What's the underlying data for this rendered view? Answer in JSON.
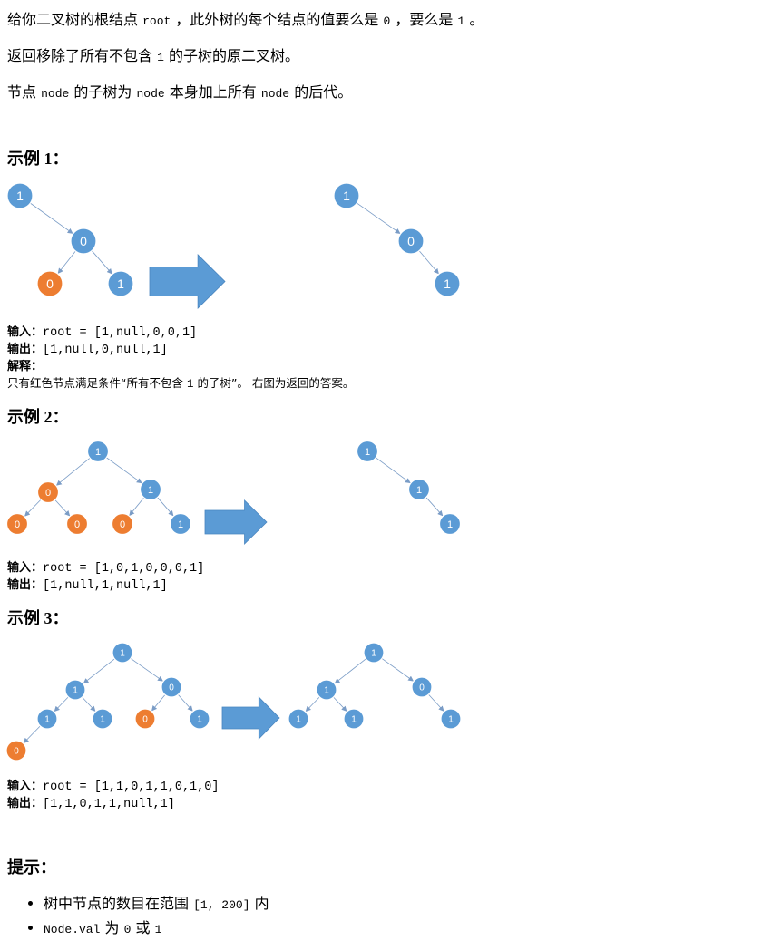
{
  "intro": {
    "line1": [
      "给你二叉树的根结点 ",
      "root",
      " ，此外树的每个结点的值要么是 ",
      "0",
      " ，要么是 ",
      "1",
      " 。"
    ],
    "line2": [
      "返回移除了所有不包含 ",
      "1",
      " 的子树的原二叉树。"
    ],
    "line3": [
      "节点 ",
      "node",
      " 的子树为 ",
      "node",
      " 本身加上所有 ",
      "node",
      " 的后代。"
    ]
  },
  "examples": [
    {
      "heading": "示例 1：",
      "input_label": "输入：",
      "input_value": "root = [1,null,0,0,1]",
      "output_label": "输出：",
      "output_value": "[1,null,0,null,1]",
      "explanation_label": "解释：",
      "explanation": [
        "只有红色节点满足条件“所有不包含 ",
        "1",
        " 的子树”。 右图为返回的答案。"
      ]
    },
    {
      "heading": "示例 2：",
      "input_label": "输入：",
      "input_value": "root = [1,0,1,0,0,0,1]",
      "output_label": "输出：",
      "output_value": "[1,null,1,null,1]"
    },
    {
      "heading": "示例 3：",
      "input_label": "输入：",
      "input_value": "root = [1,1,0,1,1,0,1,0]",
      "output_label": "输出：",
      "output_value": "[1,1,0,1,1,null,1]"
    }
  ],
  "diagrams": [
    {
      "left_nodes": [
        "1",
        "0",
        "0",
        "1"
      ],
      "left_colors": [
        "blue",
        "blue",
        "orange",
        "blue"
      ],
      "right_nodes": [
        "1",
        "0",
        "1"
      ]
    },
    {
      "left_nodes": [
        "1",
        "0",
        "1",
        "0",
        "0",
        "0",
        "1"
      ],
      "left_colors": [
        "blue",
        "orange",
        "blue",
        "orange",
        "orange",
        "orange",
        "blue"
      ],
      "right_nodes": [
        "1",
        "1",
        "1"
      ]
    },
    {
      "left_nodes": [
        "1",
        "1",
        "0",
        "1",
        "1",
        "0",
        "1",
        "0"
      ],
      "left_colors": [
        "blue",
        "blue",
        "blue",
        "blue",
        "blue",
        "orange",
        "blue",
        "orange"
      ],
      "right_nodes": [
        "1",
        "1",
        "0",
        "1",
        "1",
        "1"
      ]
    }
  ],
  "colors": {
    "node_blue": "#5b9bd5",
    "node_orange": "#ed7d31",
    "arrow": "#5b9bd5",
    "edge": "#7a9cc6"
  },
  "hints": {
    "heading": "提示：",
    "items": [
      [
        "树中节点的数目在范围 ",
        "[1, 200]",
        " 内"
      ],
      [
        "Node.val",
        " 为 ",
        "0",
        " 或 ",
        "1"
      ]
    ]
  }
}
